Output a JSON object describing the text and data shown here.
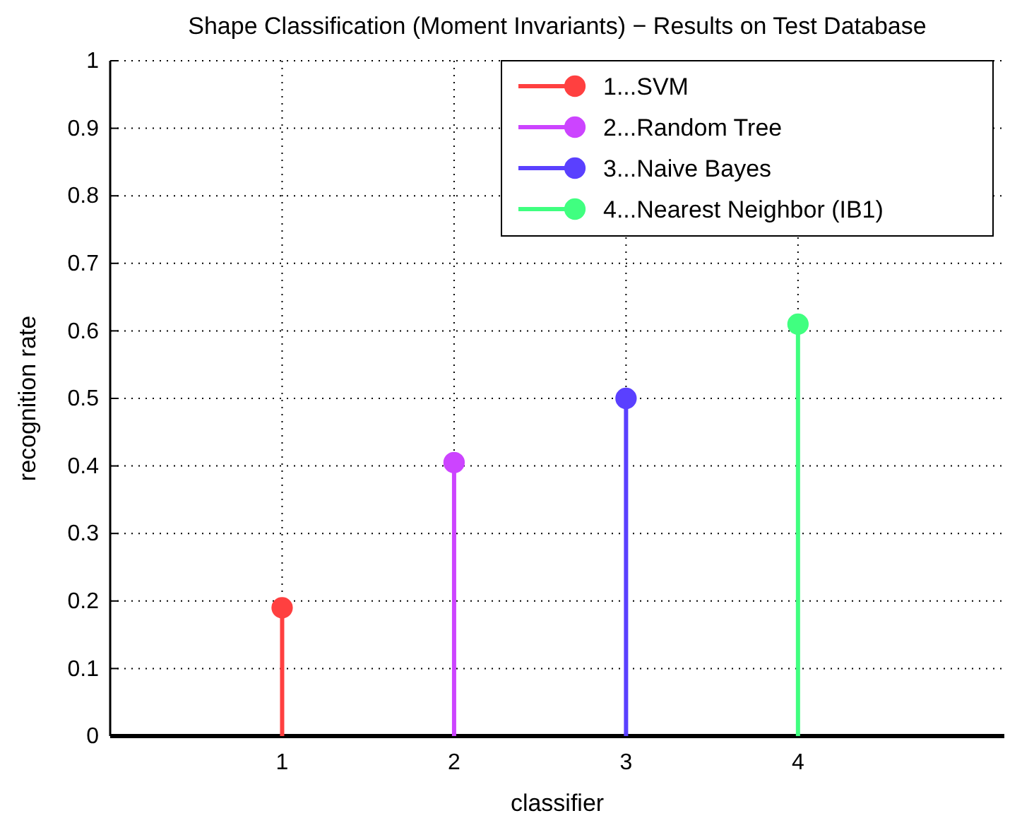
{
  "chart_data": {
    "type": "lollipop",
    "title": "Shape Classification (Moment Invariants) − Results on Test Database",
    "xlabel": "classifier",
    "ylabel": "recognition rate",
    "series": [
      {
        "name": "1...SVM",
        "color": "#ff4040",
        "x": [
          1
        ],
        "values": [
          0.19
        ]
      },
      {
        "name": "2...Random Tree",
        "color": "#cc44ff",
        "x": [
          2
        ],
        "values": [
          0.405
        ]
      },
      {
        "name": "3...Naive Bayes",
        "color": "#5a40ff",
        "x": [
          3
        ],
        "values": [
          0.5
        ]
      },
      {
        "name": "4...Nearest Neighbor (IB1)",
        "color": "#40ff80",
        "x": [
          4
        ],
        "values": [
          0.61
        ]
      }
    ],
    "xlim": [
      0,
      5.2
    ],
    "xticks": [
      1,
      2,
      3,
      4
    ],
    "ylim": [
      0,
      1
    ],
    "yticks": [
      0,
      0.1,
      0.2,
      0.3,
      0.4,
      0.5,
      0.6,
      0.7,
      0.8,
      0.9,
      1
    ],
    "grid": true,
    "legend": "top right",
    "marker": "circle"
  }
}
